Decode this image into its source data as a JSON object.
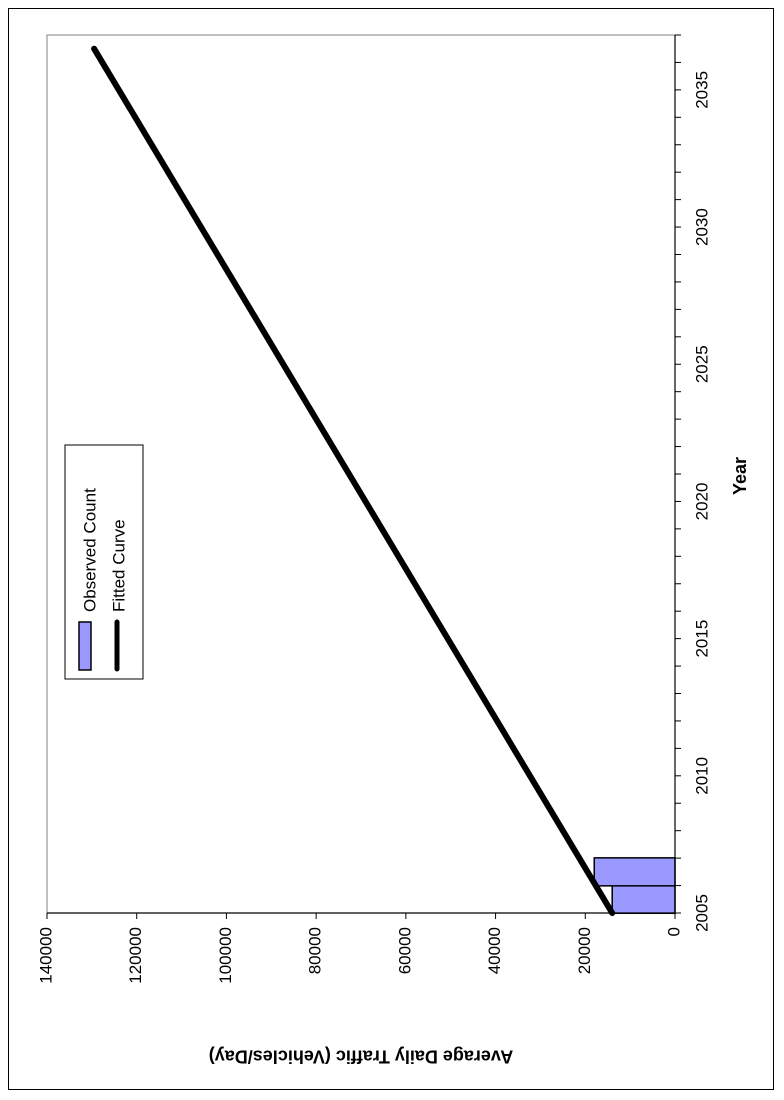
{
  "chart_data": {
    "type": "bar+line",
    "orientation": "rotated-90",
    "xlabel": "Year",
    "ylabel": "Average Daily Traffic (Vehicles/Day)",
    "xlim": [
      2005,
      2037
    ],
    "x_ticks": [
      2005,
      2010,
      2015,
      2020,
      2025,
      2030,
      2035
    ],
    "ylim": [
      0,
      140000
    ],
    "y_ticks": [
      0,
      20000,
      40000,
      60000,
      80000,
      100000,
      120000,
      140000
    ],
    "legend_position": "upper-left",
    "series": [
      {
        "name": "Observed Count",
        "kind": "bar",
        "color": "#9999ff",
        "points": [
          {
            "x": 2005,
            "y": 14000
          },
          {
            "x": 2006,
            "y": 18000
          }
        ]
      },
      {
        "name": "Fitted Curve",
        "kind": "line",
        "color": "#000000",
        "points": [
          {
            "x": 2005,
            "y": 14000
          },
          {
            "x": 2036.5,
            "y": 129500
          }
        ]
      }
    ]
  }
}
